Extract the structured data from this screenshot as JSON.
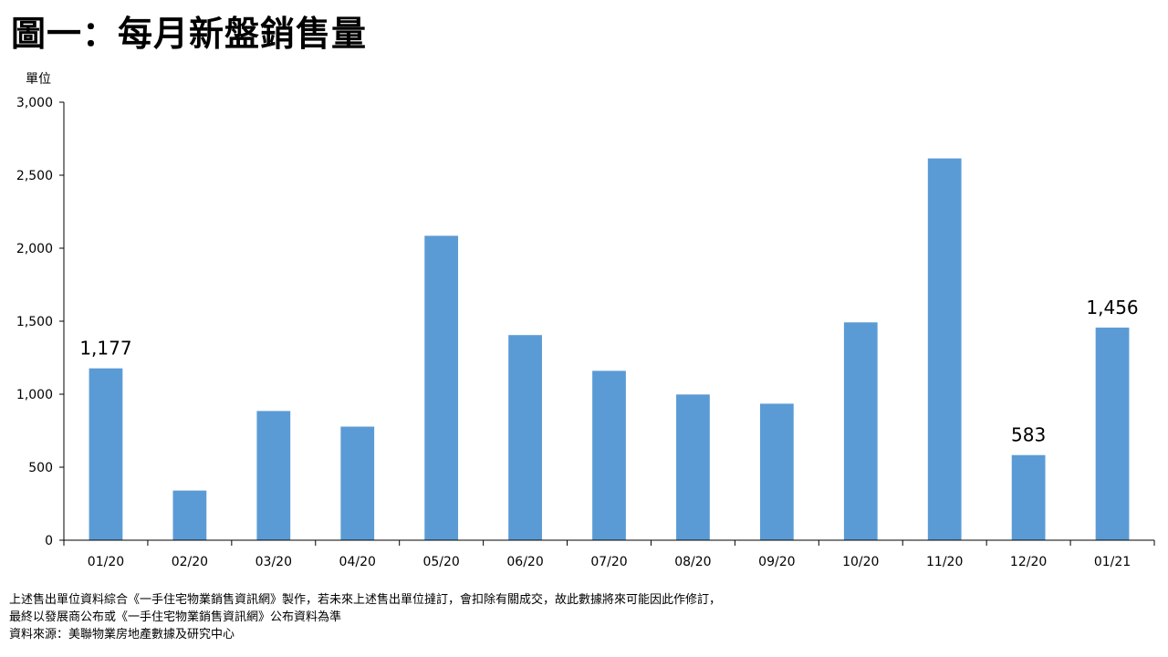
{
  "title": "圖一：每月新盤銷售量",
  "chart_data": {
    "type": "bar",
    "title": "圖一：每月新盤銷售量",
    "ylabel": "單位",
    "xlabel": "",
    "ylim": [
      0,
      3000
    ],
    "yticks": [
      0,
      500,
      1000,
      1500,
      2000,
      2500,
      3000
    ],
    "ytick_labels": [
      "0",
      "500",
      "1,000",
      "1,500",
      "2,000",
      "2,500",
      "3,000"
    ],
    "categories": [
      "01/20",
      "02/20",
      "03/20",
      "04/20",
      "05/20",
      "06/20",
      "07/20",
      "08/20",
      "09/20",
      "10/20",
      "11/20",
      "12/20",
      "01/21"
    ],
    "values": [
      1177,
      340,
      885,
      778,
      2085,
      1405,
      1160,
      998,
      935,
      1492,
      2615,
      583,
      1456
    ],
    "data_labels": [
      {
        "index": 0,
        "text": "1,177"
      },
      {
        "index": 11,
        "text": "583"
      },
      {
        "index": 12,
        "text": "1,456"
      }
    ],
    "bar_color": "#5B9BD5",
    "grid": false,
    "legend": "none"
  },
  "footnotes": [
    "上述售出單位資料綜合《一手住宅物業銷售資訊網》製作，若未來上述售出單位撻訂，會扣除有關成交，故此數據將來可能因此作修訂，",
    "最終以發展商公布或《一手住宅物業銷售資訊網》公布資料為準",
    "資料來源：美聯物業房地產數據及研究中心"
  ]
}
